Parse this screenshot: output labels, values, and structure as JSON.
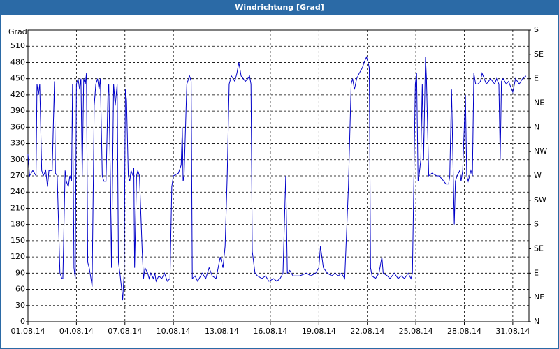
{
  "chart_data": {
    "type": "line",
    "title": "Windrichtung [Grad]",
    "y_label": "Grad",
    "color": "#0000c8",
    "grid": true,
    "xlim": [
      1,
      32
    ],
    "xticks": [
      {
        "value": 1,
        "label": "01.08.14"
      },
      {
        "value": 4,
        "label": "04.08.14"
      },
      {
        "value": 7,
        "label": "07.08.14"
      },
      {
        "value": 10,
        "label": "10.08.14"
      },
      {
        "value": 13,
        "label": "13.08.14"
      },
      {
        "value": 16,
        "label": "16.08.14"
      },
      {
        "value": 19,
        "label": "19.08.14"
      },
      {
        "value": 22,
        "label": "22.08.14"
      },
      {
        "value": 25,
        "label": "25.08.14"
      },
      {
        "value": 28,
        "label": "28.08.14"
      },
      {
        "value": 31,
        "label": "31.08.14"
      }
    ],
    "ylim": [
      0,
      540
    ],
    "yticks": [
      0,
      30,
      60,
      90,
      120,
      150,
      180,
      210,
      240,
      270,
      300,
      330,
      360,
      390,
      420,
      450,
      480,
      510
    ],
    "y2lim": [
      0,
      540
    ],
    "y2ticks": [
      {
        "value": 0,
        "label": "N"
      },
      {
        "value": 45,
        "label": "NE"
      },
      {
        "value": 90,
        "label": "E"
      },
      {
        "value": 135,
        "label": "SE"
      },
      {
        "value": 180,
        "label": "S"
      },
      {
        "value": 225,
        "label": "SW"
      },
      {
        "value": 270,
        "label": "W"
      },
      {
        "value": 315,
        "label": "NW"
      },
      {
        "value": 360,
        "label": "N"
      },
      {
        "value": 405,
        "label": "NE"
      },
      {
        "value": 450,
        "label": "E"
      },
      {
        "value": 495,
        "label": "SE"
      },
      {
        "value": 540,
        "label": "S"
      }
    ],
    "x": [
      1.0,
      1.1,
      1.3,
      1.5,
      1.56,
      1.65,
      1.73,
      1.85,
      1.95,
      2.1,
      2.21,
      2.3,
      2.5,
      2.64,
      2.7,
      2.81,
      2.98,
      3.1,
      3.16,
      3.3,
      3.37,
      3.5,
      3.59,
      3.7,
      3.76,
      3.85,
      3.93,
      4.0,
      4.1,
      4.2,
      4.28,
      4.36,
      4.45,
      4.55,
      4.62,
      4.7,
      4.79,
      4.9,
      4.97,
      5.1,
      5.2,
      5.31,
      5.4,
      5.48,
      5.6,
      5.7,
      5.83,
      5.95,
      6.0,
      6.1,
      6.17,
      6.3,
      6.4,
      6.52,
      6.6,
      6.69,
      6.8,
      6.86,
      6.95,
      7.03,
      7.1,
      7.21,
      7.3,
      7.38,
      7.5,
      7.55,
      7.6,
      7.72,
      7.8,
      7.9,
      8.07,
      8.15,
      8.24,
      8.41,
      8.5,
      8.6,
      8.76,
      8.85,
      8.93,
      9.1,
      9.28,
      9.45,
      9.62,
      9.79,
      9.9,
      10.0,
      10.31,
      10.48,
      10.55,
      10.6,
      10.66,
      10.83,
      11.0,
      11.1,
      11.17,
      11.34,
      11.5,
      11.78,
      12.0,
      12.21,
      12.4,
      12.64,
      12.9,
      13.07,
      13.2,
      13.33,
      13.45,
      13.59,
      13.8,
      13.93,
      14.05,
      14.19,
      14.45,
      14.6,
      14.71,
      14.8,
      14.88,
      15.05,
      15.2,
      15.48,
      15.7,
      15.91,
      16.2,
      16.4,
      16.6,
      16.78,
      16.95,
      17.05,
      17.2,
      17.4,
      17.81,
      18.24,
      18.5,
      18.8,
      19.0,
      19.1,
      19.28,
      19.53,
      19.8,
      20.0,
      20.2,
      20.4,
      20.6,
      20.83,
      21.0,
      21.09,
      21.2,
      21.34,
      21.5,
      21.69,
      21.8,
      21.95,
      22.05,
      22.12,
      22.2,
      22.29,
      22.5,
      22.72,
      22.9,
      22.98,
      23.24,
      23.4,
      23.67,
      23.9,
      24.1,
      24.3,
      24.53,
      24.7,
      24.79,
      24.97,
      25.05,
      25.14,
      25.2,
      25.31,
      25.4,
      25.48,
      25.6,
      25.66,
      25.8,
      26.0,
      26.3,
      26.43,
      26.6,
      26.86,
      27.03,
      27.1,
      27.21,
      27.38,
      27.45,
      27.55,
      27.72,
      27.8,
      27.9,
      28.07,
      28.15,
      28.24,
      28.41,
      28.5,
      28.59,
      28.7,
      28.84,
      29.0,
      29.1,
      29.36,
      29.5,
      29.62,
      29.88,
      30.0,
      30.14,
      30.22,
      30.3,
      30.4,
      30.6,
      30.74,
      31.0,
      31.17,
      31.4,
      31.6,
      31.82
    ],
    "values": [
      310,
      270,
      280,
      270,
      440,
      420,
      440,
      280,
      270,
      280,
      250,
      280,
      280,
      445,
      275,
      270,
      90,
      80,
      80,
      280,
      260,
      250,
      270,
      260,
      440,
      100,
      80,
      440,
      450,
      430,
      450,
      270,
      450,
      440,
      460,
      110,
      100,
      80,
      65,
      400,
      440,
      450,
      430,
      450,
      270,
      260,
      260,
      420,
      440,
      270,
      100,
      440,
      400,
      440,
      110,
      90,
      60,
      40,
      90,
      430,
      410,
      270,
      260,
      280,
      270,
      285,
      100,
      270,
      280,
      270,
      130,
      80,
      100,
      90,
      80,
      90,
      80,
      90,
      75,
      85,
      80,
      90,
      75,
      80,
      250,
      270,
      275,
      290,
      360,
      260,
      270,
      440,
      455,
      445,
      80,
      85,
      75,
      90,
      80,
      100,
      85,
      80,
      120,
      100,
      140,
      270,
      440,
      455,
      445,
      460,
      480,
      455,
      445,
      450,
      455,
      440,
      130,
      90,
      85,
      80,
      85,
      75,
      80,
      75,
      80,
      90,
      270,
      90,
      95,
      85,
      85,
      90,
      85,
      90,
      100,
      140,
      100,
      90,
      85,
      90,
      85,
      90,
      80,
      250,
      440,
      450,
      430,
      450,
      460,
      470,
      480,
      490,
      480,
      470,
      100,
      85,
      80,
      90,
      120,
      90,
      85,
      80,
      90,
      80,
      85,
      80,
      90,
      80,
      90,
      440,
      460,
      260,
      270,
      300,
      440,
      300,
      490,
      450,
      270,
      275,
      270,
      270,
      265,
      255,
      255,
      270,
      430,
      180,
      260,
      270,
      280,
      260,
      280,
      420,
      270,
      260,
      280,
      270,
      460,
      440,
      440,
      445,
      460,
      440,
      445,
      450,
      440,
      450,
      440,
      300,
      445,
      450,
      440,
      445,
      425,
      450,
      440,
      450,
      455
    ]
  }
}
